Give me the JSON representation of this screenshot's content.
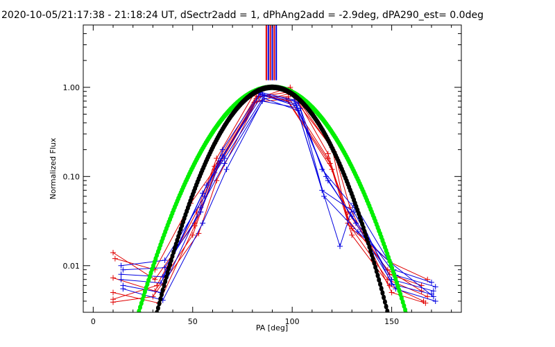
{
  "colors": {
    "red": "#e00000",
    "blue": "#0000e0",
    "green": "#00ee00",
    "black": "#000000",
    "background": "#ffffff"
  },
  "chart_data": {
    "type": "line",
    "title": "2020-10-05/21:17:38 - 21:18:24 UT, dSectr2add = 1, dPhAng2add = -2.9deg, dPA290_est=  0.0deg",
    "xlabel": "PA [deg]",
    "ylabel": "Normalized Flux",
    "xlim": [
      -5,
      185
    ],
    "ylim": [
      0.003,
      5
    ],
    "yscale": "log",
    "xticks": [
      0,
      50,
      100,
      150
    ],
    "xtick_labels": [
      "0",
      "50",
      "100",
      "150"
    ],
    "yticks": [
      0.01,
      0.1,
      1.0
    ],
    "ytick_labels": [
      "0.01",
      "0.10",
      "1.00"
    ],
    "vertical_lines": [
      {
        "x": 87.0,
        "color": "red"
      },
      {
        "x": 88.0,
        "color": "blue"
      },
      {
        "x": 89.0,
        "color": "red"
      },
      {
        "x": 90.0,
        "color": "blue"
      },
      {
        "x": 91.0,
        "color": "red"
      },
      {
        "x": 92.0,
        "color": "blue"
      }
    ],
    "line_series": [
      {
        "name": "red-1",
        "color": "red",
        "x": [
          10,
          31,
          51,
          61,
          82,
          98,
          118,
          128,
          149,
          165
        ],
        "y": [
          0.014,
          0.007,
          0.03,
          0.13,
          0.8,
          0.78,
          0.16,
          0.04,
          0.008,
          0.006
        ]
      },
      {
        "name": "red-2",
        "color": "red",
        "x": [
          10,
          31,
          50,
          61,
          82,
          99,
          120,
          128,
          148,
          168
        ],
        "y": [
          0.0073,
          0.0052,
          0.022,
          0.11,
          0.7,
          0.85,
          0.21,
          0.03,
          0.007,
          0.0045
        ]
      },
      {
        "name": "red-3",
        "color": "red",
        "x": [
          10,
          32,
          52,
          62,
          81,
          98,
          119,
          130,
          149,
          166
        ],
        "y": [
          0.0042,
          0.006,
          0.04,
          0.16,
          0.86,
          0.7,
          0.14,
          0.022,
          0.006,
          0.004
        ]
      },
      {
        "name": "red-4",
        "color": "red",
        "x": [
          10,
          30,
          53,
          62,
          83,
          100,
          121,
          129,
          150,
          167
        ],
        "y": [
          0.0039,
          0.0045,
          0.023,
          0.09,
          0.78,
          0.9,
          0.19,
          0.045,
          0.005,
          0.0038
        ]
      },
      {
        "name": "red-5",
        "color": "red",
        "x": [
          11,
          31,
          49,
          61,
          82,
          99,
          118,
          128,
          148,
          165
        ],
        "y": [
          0.012,
          0.009,
          0.05,
          0.12,
          0.75,
          1.0,
          0.18,
          0.033,
          0.009,
          0.0052
        ]
      },
      {
        "name": "red-6",
        "color": "red",
        "x": [
          10,
          33,
          51,
          63,
          81,
          97,
          120,
          130,
          149,
          168
        ],
        "y": [
          0.005,
          0.0038,
          0.028,
          0.14,
          0.68,
          0.74,
          0.12,
          0.026,
          0.011,
          0.007
        ]
      },
      {
        "name": "blue-1",
        "color": "blue",
        "x": [
          14,
          35,
          55,
          65,
          85,
          102,
          115,
          131,
          150,
          171
        ],
        "y": [
          0.008,
          0.0075,
          0.065,
          0.17,
          0.82,
          0.62,
          0.07,
          0.04,
          0.007,
          0.0052
        ]
      },
      {
        "name": "blue-2",
        "color": "blue",
        "x": [
          15,
          34,
          54,
          66,
          86,
          103,
          117,
          132,
          152,
          172
        ],
        "y": [
          0.006,
          0.005,
          0.045,
          0.14,
          0.75,
          0.55,
          0.1,
          0.03,
          0.0055,
          0.004
        ]
      },
      {
        "name": "blue-3",
        "color": "blue",
        "x": [
          14,
          36,
          56,
          65,
          84,
          101,
          124,
          131,
          151,
          170
        ],
        "y": [
          0.01,
          0.0115,
          0.06,
          0.2,
          0.88,
          0.72,
          0.0165,
          0.05,
          0.009,
          0.0065
        ]
      },
      {
        "name": "blue-4",
        "color": "blue",
        "x": [
          15,
          35,
          55,
          67,
          85,
          104,
          116,
          133,
          149,
          171
        ],
        "y": [
          0.0055,
          0.0041,
          0.03,
          0.12,
          0.7,
          0.58,
          0.06,
          0.024,
          0.011,
          0.0045
        ]
      },
      {
        "name": "blue-5",
        "color": "blue",
        "x": [
          14,
          34,
          57,
          66,
          86,
          102,
          118,
          130,
          152,
          172
        ],
        "y": [
          0.007,
          0.0064,
          0.08,
          0.16,
          0.8,
          0.65,
          0.09,
          0.036,
          0.0078,
          0.0058
        ]
      },
      {
        "name": "blue-6",
        "color": "blue",
        "x": [
          15,
          36,
          54,
          64,
          84,
          103,
          115,
          132,
          150,
          170
        ],
        "y": [
          0.009,
          0.0095,
          0.04,
          0.15,
          0.85,
          0.68,
          0.12,
          0.042,
          0.0062,
          0.0048
        ]
      }
    ],
    "model_curves": [
      {
        "name": "green-fit",
        "color": "green",
        "center": 90,
        "peak": 1.0,
        "sigma": 19.7
      },
      {
        "name": "black-fit",
        "color": "black",
        "center": 90,
        "peak": 1.0,
        "sigma": 17.0
      }
    ]
  }
}
